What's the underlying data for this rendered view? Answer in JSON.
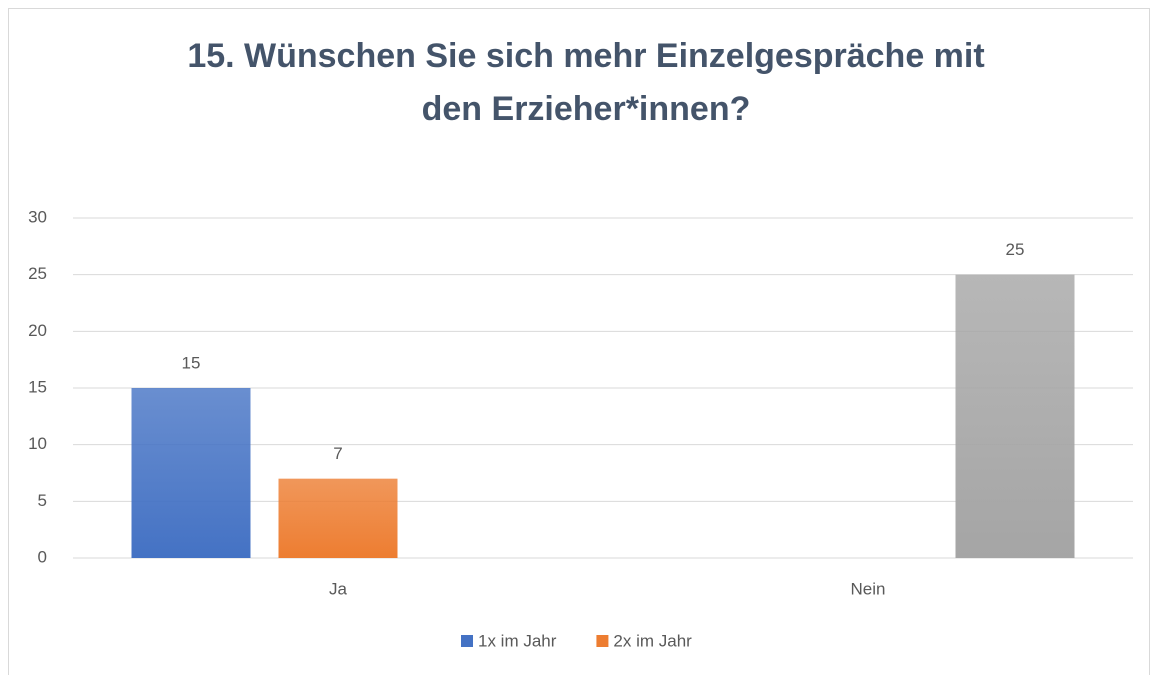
{
  "chart_data": {
    "type": "bar",
    "title": [
      "15. Wünschen Sie sich mehr Einzelgespräche mit",
      "den Erzieher*innen?"
    ],
    "categories": [
      "Ja",
      "Nein"
    ],
    "series": [
      {
        "name": "1x im Jahr",
        "color": "#4472c4",
        "values": [
          15,
          null
        ]
      },
      {
        "name": "2x im Jahr",
        "color": "#ed7d31",
        "values": [
          7,
          null
        ]
      },
      {
        "color": "#a5a5a5",
        "values": [
          null,
          25
        ]
      }
    ],
    "ylim": [
      0,
      30
    ],
    "yticks": [
      0,
      5,
      10,
      15,
      20,
      25,
      30
    ],
    "grid": true,
    "legend": "bottom"
  }
}
